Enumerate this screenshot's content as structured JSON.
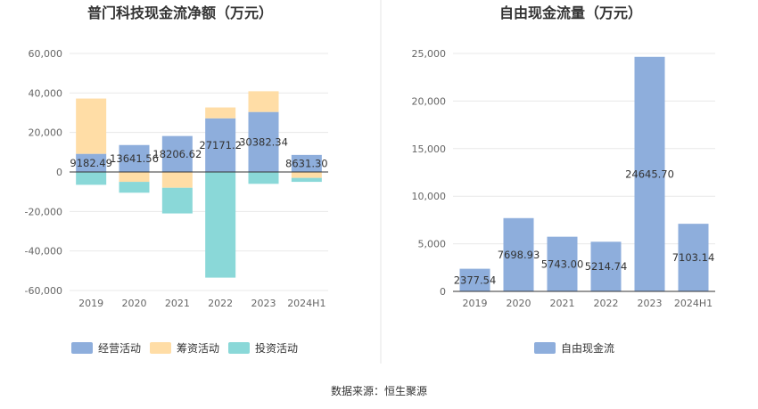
{
  "chart_data": [
    {
      "type": "bar",
      "stacked": true,
      "title": "普门科技现金流净额（万元）",
      "categories": [
        "2019",
        "2020",
        "2021",
        "2022",
        "2023",
        "2024H1"
      ],
      "ylim": [
        -60000,
        60000
      ],
      "yticks": [
        "60,000",
        "40,000",
        "20,000",
        "0",
        "-20,000",
        "-40,000",
        "-60,000"
      ],
      "ytick_values": [
        60000,
        40000,
        20000,
        0,
        -20000,
        -40000,
        -60000
      ],
      "grid": true,
      "legend": "bottom",
      "series": [
        {
          "name": "经营活动",
          "color": "#8eaedc",
          "values": [
            9182.49,
            13641.56,
            18206.62,
            27171.2,
            30382.34,
            8631.3
          ]
        },
        {
          "name": "筹资活动",
          "color": "#ffdda6",
          "values": [
            28000,
            -5000,
            -8000,
            5500,
            10500,
            -3000
          ]
        },
        {
          "name": "投资活动",
          "color": "#8ad8d8",
          "values": [
            -6500,
            -5500,
            -13000,
            -53500,
            -6000,
            -2000
          ]
        }
      ],
      "data_labels": [
        "9182.49",
        "13641.56",
        "18206.62",
        "27171.2",
        "30382.34",
        "8631.30"
      ]
    },
    {
      "type": "bar",
      "title": "自由现金流量（万元）",
      "categories": [
        "2019",
        "2020",
        "2021",
        "2022",
        "2023",
        "2024H1"
      ],
      "ylim": [
        0,
        25000
      ],
      "yticks": [
        "25,000",
        "20,000",
        "15,000",
        "10,000",
        "5,000",
        "0"
      ],
      "ytick_values": [
        25000,
        20000,
        15000,
        10000,
        5000,
        0
      ],
      "grid": true,
      "legend": "bottom",
      "series": [
        {
          "name": "自由现金流",
          "color": "#8eaedc",
          "values": [
            2377.54,
            7698.93,
            5743.0,
            5214.74,
            24645.7,
            7103.14
          ]
        }
      ],
      "data_labels": [
        "2377.54",
        "7698.93",
        "5743.00",
        "5214.74",
        "24645.70",
        "7103.14"
      ]
    }
  ],
  "source": "数据来源：恒生聚源"
}
